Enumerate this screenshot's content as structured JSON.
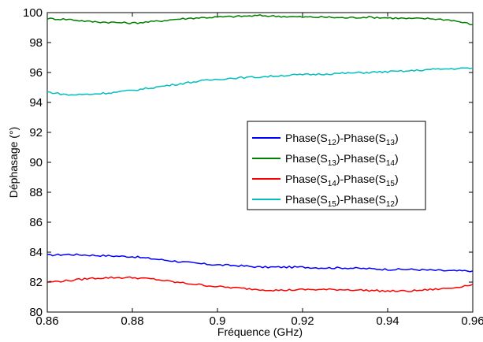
{
  "chart_data": {
    "type": "line",
    "title": "",
    "xlabel": "Fréquence (GHz)",
    "ylabel": "Déphasage (°)",
    "xlim": [
      0.86,
      0.96
    ],
    "ylim": [
      80,
      100
    ],
    "xticks": [
      0.86,
      0.88,
      0.9,
      0.92,
      0.94,
      0.96
    ],
    "xtick_labels": [
      "0.86",
      "0.88",
      "0.9",
      "0.92",
      "0.94",
      "0.96"
    ],
    "yticks": [
      80,
      82,
      84,
      86,
      88,
      90,
      92,
      94,
      96,
      98,
      100
    ],
    "ytick_labels": [
      "80",
      "82",
      "84",
      "86",
      "88",
      "90",
      "92",
      "94",
      "96",
      "98",
      "100"
    ],
    "grid": false,
    "legend_position": "center-right",
    "series": [
      {
        "name": "Phase(S12)-Phase(S13)",
        "legend": {
          "p1": "Phase(S",
          "s1": "12",
          "p2": ")-Phase(S",
          "s2": "13",
          "p3": ")"
        },
        "color": "#0000ff",
        "x": [
          0.86,
          0.865,
          0.87,
          0.875,
          0.88,
          0.885,
          0.89,
          0.895,
          0.9,
          0.905,
          0.91,
          0.915,
          0.92,
          0.925,
          0.93,
          0.935,
          0.94,
          0.945,
          0.95,
          0.955,
          0.96
        ],
        "y": [
          83.8,
          83.85,
          83.8,
          83.75,
          83.7,
          83.55,
          83.4,
          83.25,
          83.15,
          83.1,
          83.0,
          83.0,
          83.0,
          82.95,
          82.95,
          82.9,
          82.85,
          82.85,
          82.8,
          82.75,
          82.75
        ]
      },
      {
        "name": "Phase(S13)-Phase(S14)",
        "legend": {
          "p1": "Phase(S",
          "s1": "13",
          "p2": ")-Phase(S",
          "s2": "14",
          "p3": ")"
        },
        "color": "#008000",
        "x": [
          0.86,
          0.865,
          0.87,
          0.875,
          0.88,
          0.885,
          0.89,
          0.895,
          0.9,
          0.905,
          0.91,
          0.915,
          0.92,
          0.925,
          0.93,
          0.935,
          0.94,
          0.945,
          0.95,
          0.955,
          0.96
        ],
        "y": [
          99.6,
          99.55,
          99.4,
          99.35,
          99.3,
          99.4,
          99.55,
          99.65,
          99.7,
          99.75,
          99.8,
          99.75,
          99.7,
          99.7,
          99.65,
          99.7,
          99.65,
          99.6,
          99.6,
          99.5,
          99.2
        ]
      },
      {
        "name": "Phase(S14)-Phase(S15)",
        "legend": {
          "p1": "Phase(S",
          "s1": "14",
          "p2": ")-Phase(S",
          "s2": "15",
          "p3": ")"
        },
        "color": "#ff0000",
        "x": [
          0.86,
          0.865,
          0.87,
          0.875,
          0.88,
          0.885,
          0.89,
          0.895,
          0.9,
          0.905,
          0.91,
          0.915,
          0.92,
          0.925,
          0.93,
          0.935,
          0.94,
          0.945,
          0.95,
          0.955,
          0.96
        ],
        "y": [
          82.0,
          82.1,
          82.25,
          82.3,
          82.3,
          82.2,
          82.0,
          81.85,
          81.7,
          81.6,
          81.5,
          81.45,
          81.5,
          81.5,
          81.5,
          81.45,
          81.4,
          81.4,
          81.5,
          81.6,
          81.85
        ]
      },
      {
        "name": "Phase(S15)-Phase(S12)",
        "legend": {
          "p1": "Phase(S",
          "s1": "15",
          "p2": ")-Phase(S",
          "s2": "12",
          "p3": ")"
        },
        "color": "#00bfbf",
        "x": [
          0.86,
          0.865,
          0.87,
          0.875,
          0.88,
          0.885,
          0.89,
          0.895,
          0.9,
          0.905,
          0.91,
          0.915,
          0.92,
          0.925,
          0.93,
          0.935,
          0.94,
          0.945,
          0.95,
          0.955,
          0.96
        ],
        "y": [
          94.7,
          94.5,
          94.55,
          94.65,
          94.8,
          95.0,
          95.2,
          95.4,
          95.55,
          95.65,
          95.7,
          95.8,
          95.85,
          95.9,
          95.95,
          96.0,
          96.05,
          96.1,
          96.2,
          96.25,
          96.3
        ]
      }
    ]
  }
}
